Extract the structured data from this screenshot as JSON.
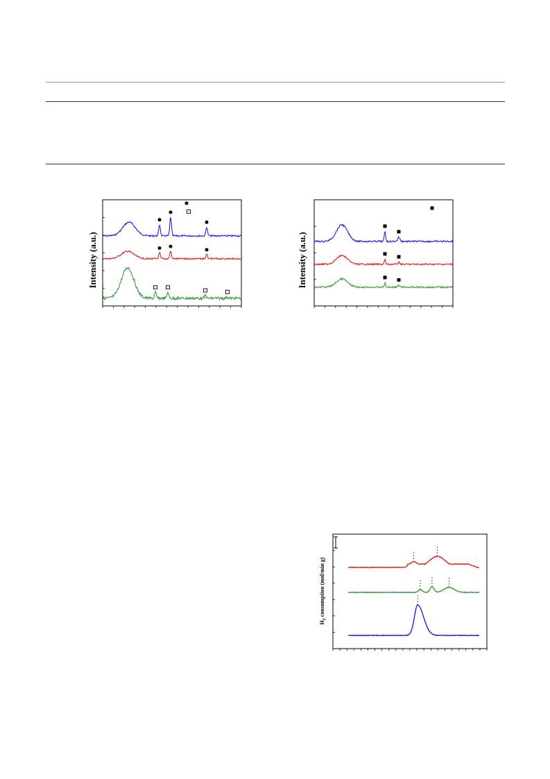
{
  "table": {
    "rule_top": "",
    "rule_header": "",
    "rule_bottom": ""
  },
  "figure_left": {
    "ylabel": "Intensity (a.u.)"
  },
  "figure_right": {
    "ylabel": "Intensity (a.u.)"
  },
  "figure_tpr": {
    "ylabel_main": "H",
    "ylabel_sub": "2",
    "ylabel_rest": " consumption (mol/min g)"
  },
  "chart_data": [
    {
      "type": "line",
      "title": "",
      "xlabel": "",
      "ylabel": "Intensity (a.u.)",
      "series": [
        {
          "color": "#2020e0",
          "peaks": [
            {
              "x": 0.19,
              "h": 0.55
            },
            {
              "x": 0.41,
              "h": 0.45
            },
            {
              "x": 0.49,
              "h": 0.75
            },
            {
              "x": 0.75,
              "h": 0.35
            }
          ]
        },
        {
          "color": "#e02020",
          "peaks": [
            {
              "x": 0.18,
              "h": 0.45
            },
            {
              "x": 0.41,
              "h": 0.35
            },
            {
              "x": 0.49,
              "h": 0.45
            },
            {
              "x": 0.75,
              "h": 0.25
            }
          ]
        },
        {
          "color": "#3c9a3c",
          "peaks": [
            {
              "x": 0.18,
              "h": 1.0
            },
            {
              "x": 0.38,
              "h": 0.2
            },
            {
              "x": 0.47,
              "h": 0.2
            },
            {
              "x": 0.74,
              "h": 0.1
            },
            {
              "x": 0.9,
              "h": 0.05
            }
          ]
        }
      ],
      "markers": [
        {
          "shape": "filled-circle",
          "series": 0,
          "x": 0.41
        },
        {
          "shape": "filled-circle",
          "series": 0,
          "x": 0.49
        },
        {
          "shape": "filled-circle",
          "series": 0,
          "x": 0.75
        },
        {
          "shape": "filled-circle",
          "series": 1,
          "x": 0.41
        },
        {
          "shape": "filled-circle",
          "series": 1,
          "x": 0.49
        },
        {
          "shape": "filled-circle",
          "series": 1,
          "x": 0.75
        },
        {
          "shape": "open-square",
          "series": 2,
          "x": 0.38
        },
        {
          "shape": "open-square",
          "series": 2,
          "x": 0.47
        },
        {
          "shape": "open-square",
          "series": 2,
          "x": 0.74
        },
        {
          "shape": "open-square",
          "series": 2,
          "x": 0.9
        }
      ],
      "legend_markers": [
        "filled-circle",
        "open-square"
      ]
    },
    {
      "type": "line",
      "title": "",
      "xlabel": "",
      "ylabel": "Intensity (a.u.)",
      "series": [
        {
          "color": "#2020e0",
          "peaks": [
            {
              "x": 0.2,
              "h": 0.6
            },
            {
              "x": 0.51,
              "h": 0.35
            },
            {
              "x": 0.61,
              "h": 0.15
            }
          ]
        },
        {
          "color": "#e02020",
          "peaks": [
            {
              "x": 0.2,
              "h": 0.45
            },
            {
              "x": 0.51,
              "h": 0.25
            },
            {
              "x": 0.61,
              "h": 0.1
            }
          ]
        },
        {
          "color": "#3c9a3c",
          "peaks": [
            {
              "x": 0.2,
              "h": 0.5
            },
            {
              "x": 0.51,
              "h": 0.25
            },
            {
              "x": 0.61,
              "h": 0.1
            }
          ]
        }
      ],
      "markers": [
        {
          "shape": "filled-square",
          "series": 0,
          "x": 0.51
        },
        {
          "shape": "filled-square",
          "series": 0,
          "x": 0.61
        },
        {
          "shape": "filled-square",
          "series": 1,
          "x": 0.51
        },
        {
          "shape": "filled-square",
          "series": 1,
          "x": 0.61
        },
        {
          "shape": "filled-square",
          "series": 2,
          "x": 0.51
        },
        {
          "shape": "filled-square",
          "series": 2,
          "x": 0.61
        }
      ],
      "legend_markers": [
        "filled-square"
      ]
    },
    {
      "type": "line",
      "title": "",
      "xlabel": "",
      "ylabel": "H2 consumption (mol/min g)",
      "series": [
        {
          "color": "#e02020",
          "peaks": [
            {
              "x": 0.5,
              "h": 0.2
            },
            {
              "x": 0.68,
              "h": 0.4
            }
          ]
        },
        {
          "color": "#3c9a3c",
          "peaks": [
            {
              "x": 0.55,
              "h": 0.1
            },
            {
              "x": 0.64,
              "h": 0.2
            },
            {
              "x": 0.77,
              "h": 0.18
            }
          ]
        },
        {
          "color": "#2020e0",
          "peaks": [
            {
              "x": 0.53,
              "h": 1.0
            }
          ]
        }
      ],
      "dashed_markers": [
        {
          "series": 0,
          "x": 0.5
        },
        {
          "series": 0,
          "x": 0.68
        },
        {
          "series": 1,
          "x": 0.55
        },
        {
          "series": 1,
          "x": 0.64
        },
        {
          "series": 1,
          "x": 0.77
        },
        {
          "series": 2,
          "x": 0.53
        }
      ]
    }
  ]
}
